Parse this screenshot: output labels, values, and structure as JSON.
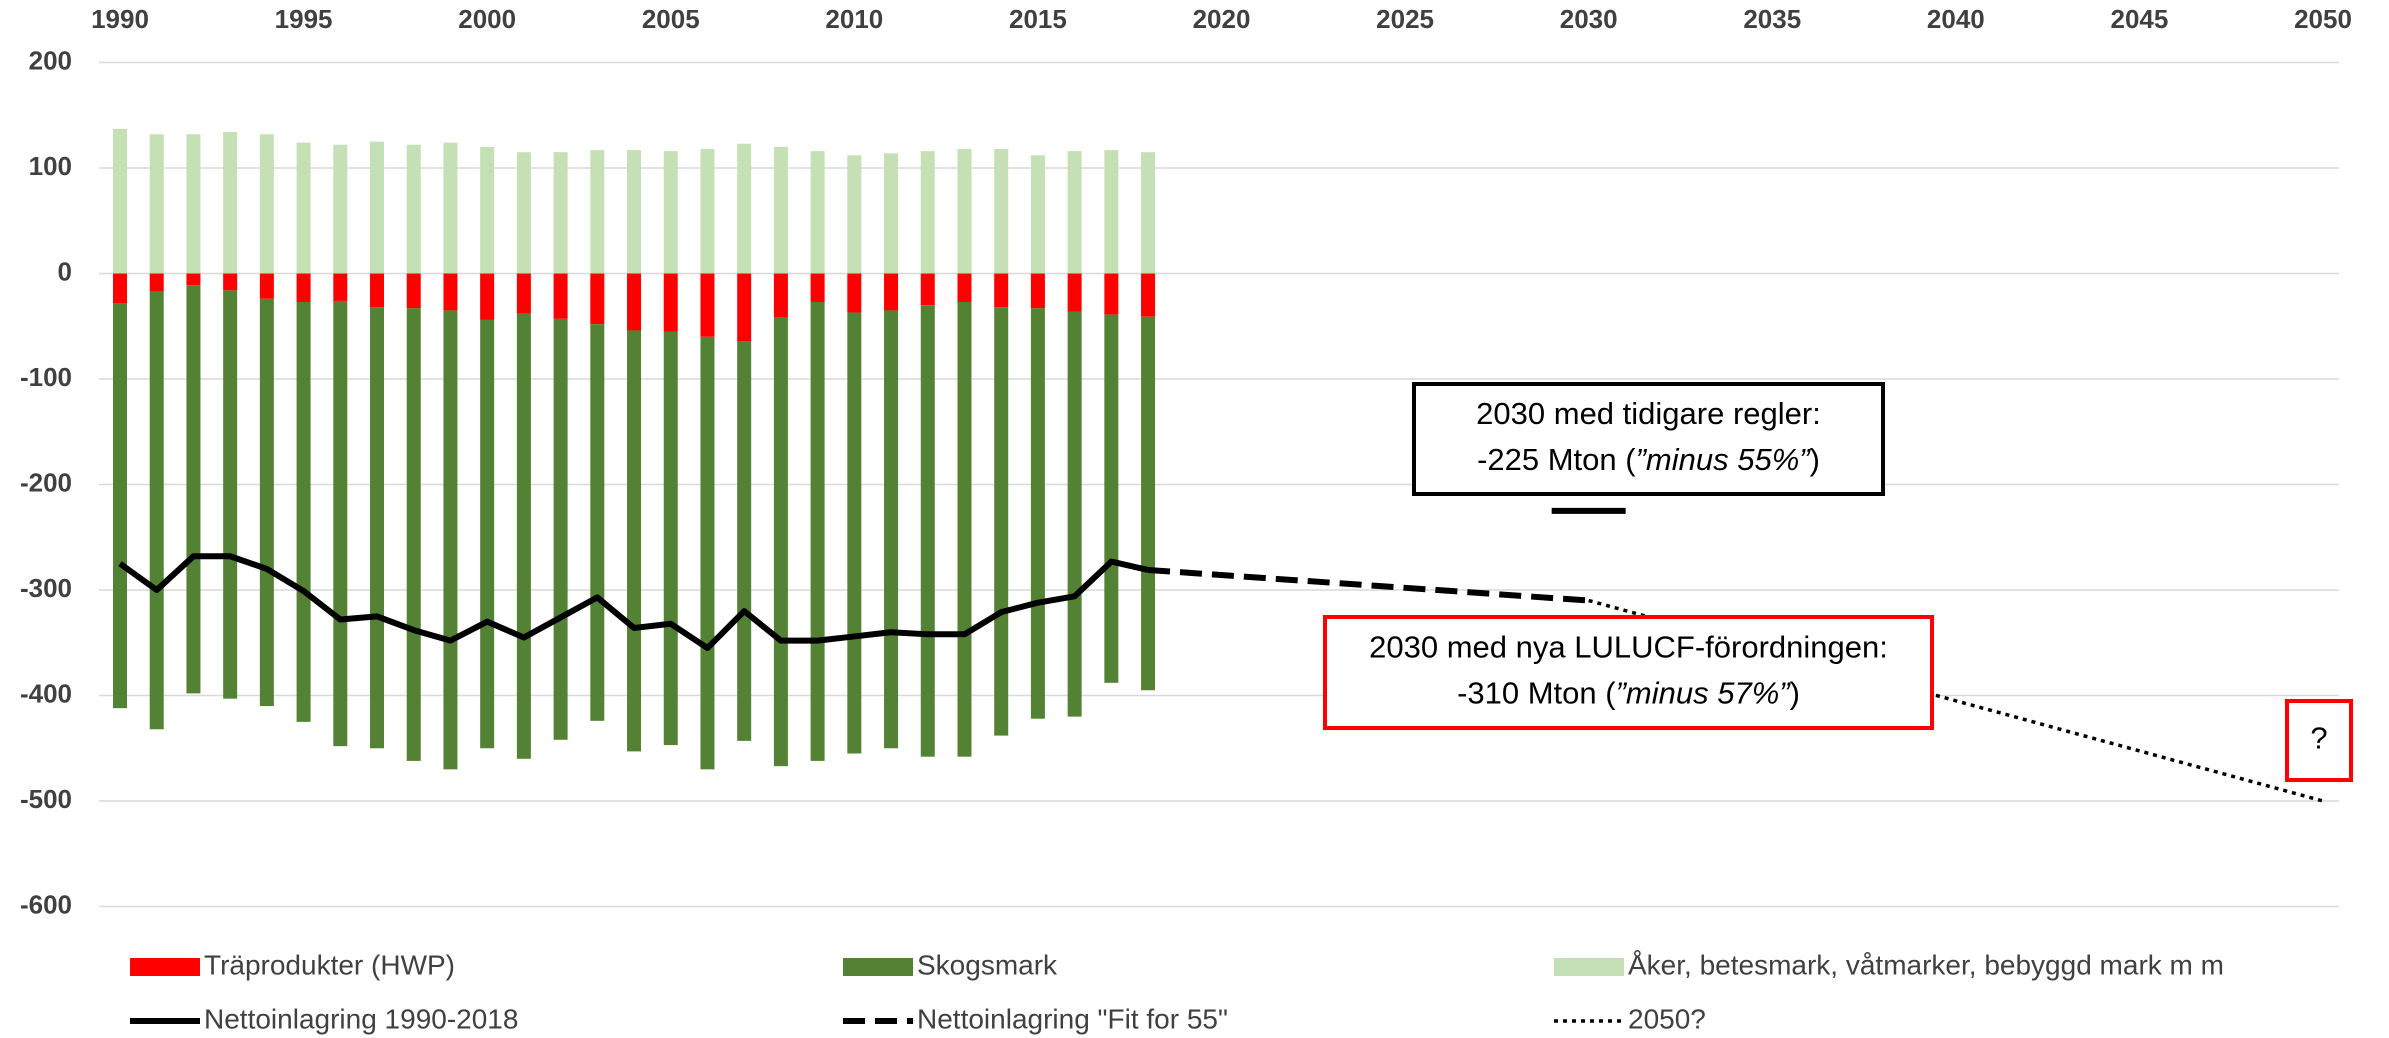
{
  "chart_data": {
    "type": "bar",
    "x": [
      1990,
      1991,
      1992,
      1993,
      1994,
      1995,
      1996,
      1997,
      1998,
      1999,
      2000,
      2001,
      2002,
      2003,
      2004,
      2005,
      2006,
      2007,
      2008,
      2009,
      2010,
      2011,
      2012,
      2013,
      2014,
      2015,
      2016,
      2017,
      2018
    ],
    "xlim": [
      1990,
      2050
    ],
    "xticks": [
      1990,
      1995,
      2000,
      2005,
      2010,
      2015,
      2020,
      2025,
      2030,
      2035,
      2040,
      2045,
      2050
    ],
    "ylim": [
      -600,
      200
    ],
    "yticks": [
      -600,
      -500,
      -400,
      -300,
      -200,
      -100,
      0,
      100,
      200
    ],
    "grid": true,
    "series": [
      {
        "name": "Träprodukter (HWP)",
        "kind": "bar",
        "color": "#ff0000",
        "values": [
          -28,
          -17,
          -11,
          -16,
          -24,
          -27,
          -26,
          -32,
          -33,
          -35,
          -44,
          -38,
          -43,
          -48,
          -54,
          -55,
          -60,
          -64,
          -42,
          -27,
          -37,
          -35,
          -30,
          -27,
          -32,
          -33,
          -36,
          -39,
          -41
        ]
      },
      {
        "name": "Skogsmark",
        "kind": "bar",
        "color": "#548235",
        "values": [
          -384,
          -415,
          -387,
          -387,
          -386,
          -398,
          -422,
          -418,
          -429,
          -435,
          -406,
          -422,
          -399,
          -376,
          -399,
          -392,
          -410,
          -379,
          -425,
          -435,
          -418,
          -415,
          -428,
          -431,
          -406,
          -389,
          -384,
          -349,
          -354
        ]
      },
      {
        "name": "Åker, betesmark, våtmarker, bebyggd mark m m",
        "kind": "bar",
        "color": "#c5e0b4",
        "values": [
          137,
          132,
          132,
          134,
          132,
          124,
          122,
          125,
          122,
          124,
          120,
          115,
          115,
          117,
          117,
          116,
          118,
          123,
          120,
          116,
          112,
          114,
          116,
          118,
          118,
          112,
          116,
          117,
          115
        ]
      },
      {
        "name": "Nettoinlagring 1990-2018",
        "kind": "line",
        "style": "solid",
        "color": "#000000",
        "x": [
          1990,
          1991,
          1992,
          1993,
          1994,
          1995,
          1996,
          1997,
          1998,
          1999,
          2000,
          2001,
          2002,
          2003,
          2004,
          2005,
          2006,
          2007,
          2008,
          2009,
          2010,
          2011,
          2012,
          2013,
          2014,
          2015,
          2016,
          2017,
          2018
        ],
        "values": [
          -275,
          -300,
          -268,
          -268,
          -280,
          -301,
          -328,
          -325,
          -338,
          -348,
          -330,
          -345,
          -326,
          -307,
          -336,
          -332,
          -355,
          -320,
          -348,
          -348,
          -344,
          -340,
          -342,
          -342,
          -321,
          -312,
          -306,
          -273,
          -281
        ]
      },
      {
        "name": "Nettoinlagring \"Fit for 55\"",
        "kind": "line",
        "style": "dashed",
        "color": "#000000",
        "x": [
          2018,
          2030
        ],
        "values": [
          -281,
          -310
        ]
      },
      {
        "name": "2050?",
        "kind": "line",
        "style": "dotted",
        "color": "#000000",
        "x": [
          2030,
          2050
        ],
        "values": [
          -310,
          -500
        ]
      }
    ],
    "annotations": [
      {
        "x": 2030,
        "value": -225,
        "color": "#000000",
        "lines": [
          [
            "2030 med tidigare regler:"
          ],
          [
            "-225 Mton (",
            "”minus 55%”",
            ")"
          ]
        ]
      },
      {
        "x": 2030,
        "value": -310,
        "color": "#ff0000",
        "lines": [
          [
            "2030 med nya LULUCF-förordningen:"
          ],
          [
            "-310 Mton (",
            "”minus 57%”",
            ")"
          ]
        ]
      },
      {
        "x": 2050,
        "value": -500,
        "color": "#ff0000",
        "lines": [
          [
            "?"
          ]
        ]
      }
    ]
  }
}
